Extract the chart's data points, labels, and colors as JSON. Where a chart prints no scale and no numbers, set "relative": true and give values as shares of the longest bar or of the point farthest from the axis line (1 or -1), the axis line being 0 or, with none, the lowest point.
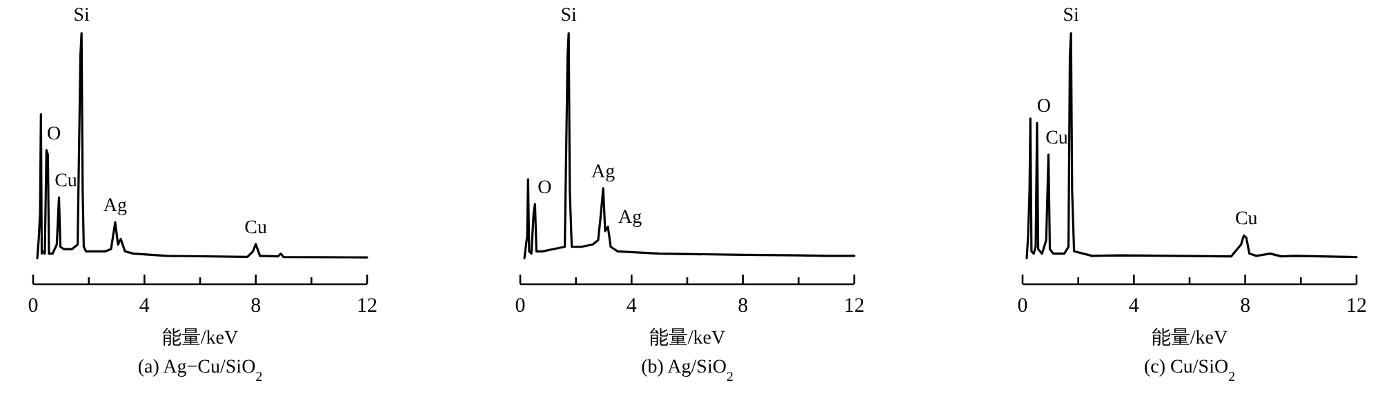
{
  "chart_data": [
    {
      "type": "line",
      "relative": true,
      "title": "(a) Ag−Cu/SiO$_{2}$",
      "xlabel": "能量/keV",
      "xlim": [
        0,
        12
      ],
      "xticks": [
        0,
        {
          "value": 2,
          "label": null
        },
        4,
        {
          "value": 6,
          "label": null
        },
        8,
        {
          "value": 10,
          "label": null
        },
        12
      ],
      "tick_labels": "x",
      "series": [
        {
          "color": "#000000",
          "x": [
            0.15,
            0.2,
            0.25,
            0.28,
            0.31,
            0.35,
            0.42,
            0.48,
            0.53,
            0.57,
            0.7,
            0.85,
            0.93,
            0.98,
            1.1,
            1.4,
            1.6,
            1.7,
            1.74,
            1.78,
            1.82,
            1.9,
            2.6,
            2.8,
            2.95,
            3.05,
            3.15,
            3.3,
            3.6,
            4.8,
            7.7,
            7.9,
            8.0,
            8.15,
            8.8,
            8.9,
            9.0,
            12.0
          ],
          "values": [
            0.104,
            0.176,
            0.283,
            0.677,
            0.122,
            0.131,
            0.122,
            0.534,
            0.516,
            0.122,
            0.122,
            0.158,
            0.346,
            0.149,
            0.14,
            0.14,
            0.158,
            0.91,
            1.0,
            0.373,
            0.149,
            0.131,
            0.131,
            0.14,
            0.247,
            0.158,
            0.18,
            0.131,
            0.122,
            0.113,
            0.109,
            0.131,
            0.16,
            0.113,
            0.111,
            0.122,
            0.108,
            0.107
          ]
        }
      ],
      "annotations": [
        {
          "text": "Si",
          "x": 1.74,
          "y": 1.0
        },
        {
          "text": "O",
          "x": 0.5,
          "y": 0.534
        },
        {
          "text": "Cu",
          "x": 0.93,
          "y": 0.346
        },
        {
          "text": "Ag",
          "x": 2.95,
          "y": 0.247
        },
        {
          "text": "Cu",
          "x": 8.0,
          "y": 0.16
        }
      ]
    },
    {
      "type": "line",
      "relative": true,
      "title": "(b) Ag/SiO$_{2}$",
      "xlabel": "能量/keV",
      "xlim": [
        0,
        12
      ],
      "xticks": [
        0,
        {
          "value": 2,
          "label": null
        },
        4,
        {
          "value": 6,
          "label": null
        },
        8,
        {
          "value": 10,
          "label": null
        },
        12
      ],
      "tick_labels": "x",
      "series": [
        {
          "color": "#000000",
          "x": [
            0.15,
            0.2,
            0.25,
            0.28,
            0.32,
            0.4,
            0.48,
            0.53,
            0.58,
            0.8,
            1.2,
            1.6,
            1.7,
            1.74,
            1.78,
            1.85,
            2.2,
            2.6,
            2.8,
            2.9,
            2.98,
            3.05,
            3.15,
            3.25,
            3.5,
            5.0,
            8.0,
            10.0,
            11.0,
            12.0
          ],
          "values": [
            0.104,
            0.149,
            0.194,
            0.418,
            0.131,
            0.122,
            0.283,
            0.319,
            0.131,
            0.131,
            0.14,
            0.149,
            0.91,
            1.0,
            0.373,
            0.149,
            0.149,
            0.158,
            0.176,
            0.283,
            0.382,
            0.212,
            0.229,
            0.149,
            0.131,
            0.122,
            0.117,
            0.115,
            0.113,
            0.113
          ]
        }
      ],
      "annotations": [
        {
          "text": "Si",
          "x": 1.74,
          "y": 1.0
        },
        {
          "text": "O",
          "x": 0.53,
          "y": 0.319
        },
        {
          "text": "Ag",
          "x": 2.98,
          "y": 0.382
        },
        {
          "text": "Ag",
          "x": 3.15,
          "y": 0.229
        }
      ]
    },
    {
      "type": "line",
      "relative": true,
      "title": "(c) Cu/SiO$_{2}$",
      "xlabel": "能量/keV",
      "xlim": [
        0,
        12
      ],
      "xticks": [
        0,
        {
          "value": 2,
          "label": null
        },
        4,
        {
          "value": 6,
          "label": null
        },
        8,
        {
          "value": 10,
          "label": null
        },
        12
      ],
      "tick_labels": "x",
      "series": [
        {
          "color": "#000000",
          "x": [
            0.15,
            0.2,
            0.25,
            0.28,
            0.32,
            0.4,
            0.47,
            0.52,
            0.56,
            0.7,
            0.85,
            0.93,
            0.98,
            1.1,
            1.5,
            1.65,
            1.7,
            1.74,
            1.78,
            1.85,
            2.5,
            3.5,
            7.5,
            7.85,
            7.95,
            8.04,
            8.15,
            8.4,
            8.9,
            9.3,
            9.8,
            12.0
          ],
          "values": [
            0.104,
            0.194,
            0.373,
            0.66,
            0.131,
            0.122,
            0.149,
            0.642,
            0.14,
            0.122,
            0.176,
            0.516,
            0.14,
            0.122,
            0.122,
            0.149,
            0.91,
            1.0,
            0.373,
            0.131,
            0.113,
            0.115,
            0.111,
            0.158,
            0.194,
            0.185,
            0.122,
            0.113,
            0.122,
            0.111,
            0.113,
            0.108
          ]
        }
      ],
      "annotations": [
        {
          "text": "Si",
          "x": 1.74,
          "y": 1.0
        },
        {
          "text": "O",
          "x": 0.52,
          "y": 0.642
        },
        {
          "text": "Cu",
          "x": 0.93,
          "y": 0.516
        },
        {
          "text": "Cu",
          "x": 8.04,
          "y": 0.194
        }
      ]
    }
  ]
}
